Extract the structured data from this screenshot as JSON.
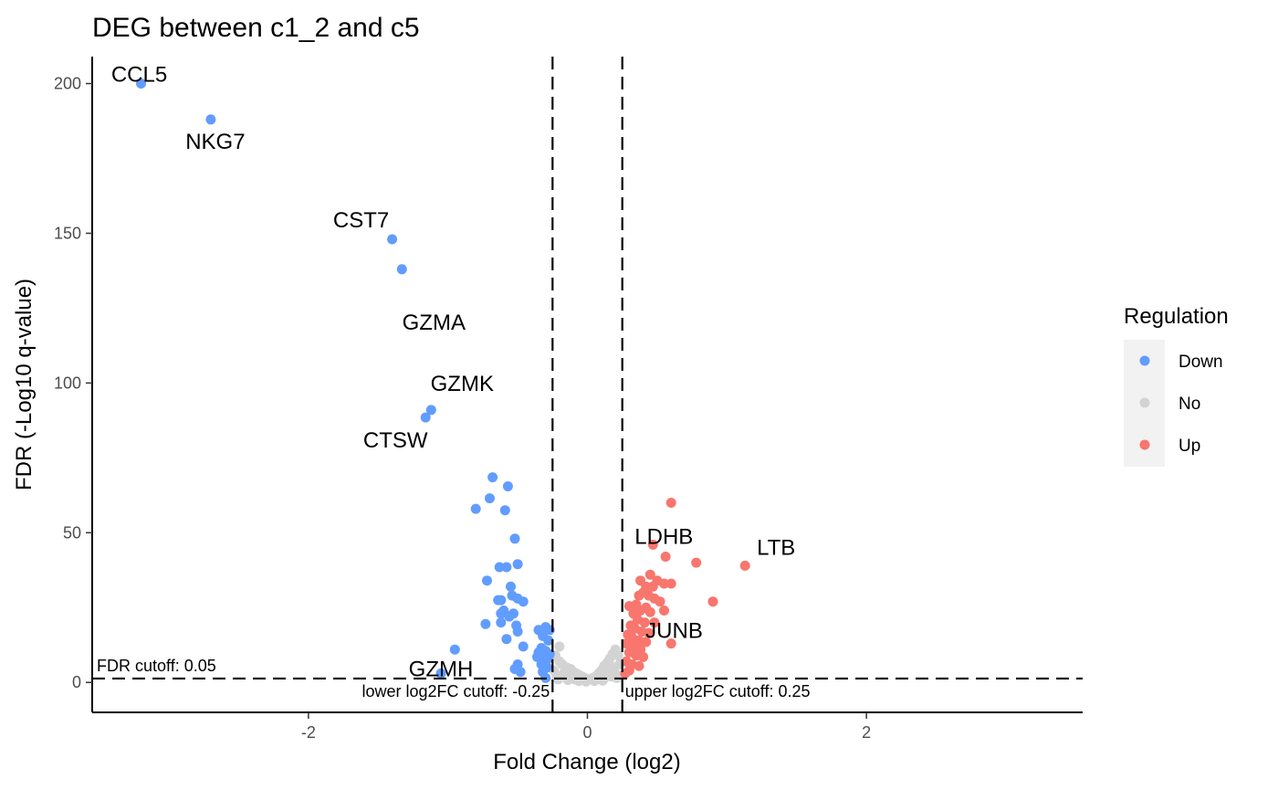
{
  "chart_data": {
    "type": "scatter",
    "title": "DEG between c1_2 and c5",
    "xlabel": "Fold Change (log2)",
    "ylabel": "FDR (-Log10 q-value)",
    "xlim": [
      -3.55,
      3.55
    ],
    "ylim": [
      -10,
      209
    ],
    "x_ticks": [
      -2,
      0,
      2
    ],
    "x_tick_labels": [
      "-2",
      "0",
      "2"
    ],
    "y_ticks": [
      0,
      50,
      100,
      150,
      200
    ],
    "y_tick_labels": [
      "0",
      "50",
      "100",
      "150",
      "200"
    ],
    "grid": false,
    "legend": {
      "title": "Regulation",
      "position": "right",
      "entries": [
        {
          "label": "Down",
          "color": "#619CFF"
        },
        {
          "label": "No",
          "color": "#D3D3D3"
        },
        {
          "label": "Up",
          "color": "#F8766D"
        }
      ]
    },
    "cutoffs": {
      "fdr": 1.3,
      "lower_log2fc": -0.25,
      "upper_log2fc": 0.25,
      "fdr_label": "FDR cutoff: 0.05",
      "lower_label": "lower log2FC cutoff: -0.25",
      "upper_label": "upper log2FC cutoff: 0.25"
    },
    "series": [
      {
        "name": "Down",
        "color": "#619CFF",
        "points": [
          [
            -3.2,
            200
          ],
          [
            -2.7,
            188
          ],
          [
            -1.4,
            148
          ],
          [
            -1.33,
            138
          ],
          [
            -1.12,
            91
          ],
          [
            -1.16,
            88.5
          ],
          [
            -0.68,
            68.5
          ],
          [
            -0.57,
            65.5
          ],
          [
            -0.7,
            61.5
          ],
          [
            -0.59,
            57.5
          ],
          [
            -0.8,
            58
          ],
          [
            -0.52,
            48
          ],
          [
            -0.5,
            39.5
          ],
          [
            -0.63,
            38.5
          ],
          [
            -0.58,
            38.5
          ],
          [
            -0.72,
            34
          ],
          [
            -0.55,
            32
          ],
          [
            -0.64,
            27.5
          ],
          [
            -0.62,
            27.5
          ],
          [
            -0.54,
            29
          ],
          [
            -0.5,
            28
          ],
          [
            -0.46,
            27
          ],
          [
            -0.6,
            24
          ],
          [
            -0.62,
            23
          ],
          [
            -0.56,
            22
          ],
          [
            -0.53,
            23
          ],
          [
            -0.62,
            20
          ],
          [
            -0.51,
            19
          ],
          [
            -0.5,
            17
          ],
          [
            -0.58,
            14.5
          ],
          [
            -0.73,
            19.5
          ],
          [
            -0.3,
            18.5
          ],
          [
            -0.35,
            17.5
          ],
          [
            -0.27,
            17.5
          ],
          [
            -0.32,
            15.5
          ],
          [
            -0.28,
            14
          ],
          [
            -0.33,
            11.5
          ],
          [
            -0.3,
            10.5
          ],
          [
            -0.35,
            10
          ],
          [
            -0.27,
            9.5
          ],
          [
            -0.31,
            9
          ],
          [
            -0.36,
            8.5
          ],
          [
            -0.28,
            8
          ],
          [
            -0.3,
            7
          ],
          [
            -0.33,
            6
          ],
          [
            -0.29,
            5
          ],
          [
            -0.46,
            12
          ],
          [
            -0.95,
            11
          ],
          [
            -0.5,
            6
          ],
          [
            -0.52,
            4.5
          ],
          [
            -0.48,
            3.5
          ],
          [
            -0.32,
            3.5
          ],
          [
            -0.3,
            1.5
          ],
          [
            -1.05,
            3
          ]
        ]
      },
      {
        "name": "No",
        "color": "#D3D3D3",
        "points": [
          [
            -0.2,
            12
          ],
          [
            -0.23,
            9
          ],
          [
            -0.2,
            7
          ],
          [
            -0.18,
            6
          ],
          [
            -0.15,
            5
          ],
          [
            -0.12,
            4.5
          ],
          [
            -0.1,
            3.5
          ],
          [
            -0.08,
            3
          ],
          [
            -0.06,
            2.5
          ],
          [
            -0.04,
            2
          ],
          [
            -0.02,
            1.5
          ],
          [
            0.0,
            1
          ],
          [
            0.02,
            1
          ],
          [
            0.04,
            1.5
          ],
          [
            0.06,
            2
          ],
          [
            0.08,
            3
          ],
          [
            0.1,
            4
          ],
          [
            0.12,
            5.5
          ],
          [
            0.14,
            6.5
          ],
          [
            0.16,
            8
          ],
          [
            0.18,
            9.5
          ],
          [
            0.2,
            11
          ],
          [
            0.22,
            9
          ],
          [
            0.19,
            5
          ],
          [
            0.15,
            3
          ],
          [
            -0.17,
            3
          ],
          [
            -0.22,
            2
          ],
          [
            -0.24,
            4
          ],
          [
            -0.21,
            1
          ],
          [
            -0.13,
            1.5
          ],
          [
            -0.09,
            1
          ],
          [
            0.09,
            1
          ],
          [
            0.13,
            2
          ],
          [
            0.2,
            3
          ],
          [
            0.23,
            6
          ],
          [
            -0.06,
            0.5
          ],
          [
            0.05,
            0.5
          ],
          [
            -0.01,
            0.3
          ],
          [
            0.11,
            0.6
          ],
          [
            -0.14,
            0.8
          ],
          [
            0.21,
            1.5
          ],
          [
            0.17,
            2
          ]
        ]
      },
      {
        "name": "Up",
        "color": "#F8766D",
        "points": [
          [
            0.6,
            60
          ],
          [
            0.47,
            46
          ],
          [
            0.56,
            42
          ],
          [
            0.78,
            40
          ],
          [
            1.13,
            39
          ],
          [
            0.9,
            27
          ],
          [
            0.6,
            13
          ],
          [
            0.45,
            36
          ],
          [
            0.5,
            34
          ],
          [
            0.38,
            34
          ],
          [
            0.42,
            32
          ],
          [
            0.47,
            32
          ],
          [
            0.55,
            33
          ],
          [
            0.6,
            33
          ],
          [
            0.4,
            30
          ],
          [
            0.44,
            29
          ],
          [
            0.37,
            29
          ],
          [
            0.48,
            28
          ],
          [
            0.52,
            27
          ],
          [
            0.35,
            26
          ],
          [
            0.3,
            25.5
          ],
          [
            0.42,
            25
          ],
          [
            0.38,
            24
          ],
          [
            0.45,
            23.5
          ],
          [
            0.55,
            24
          ],
          [
            0.33,
            23
          ],
          [
            0.36,
            21
          ],
          [
            0.41,
            20
          ],
          [
            0.48,
            20
          ],
          [
            0.31,
            19
          ],
          [
            0.34,
            18
          ],
          [
            0.39,
            17
          ],
          [
            0.44,
            16.5
          ],
          [
            0.29,
            16
          ],
          [
            0.32,
            15
          ],
          [
            0.37,
            14
          ],
          [
            0.42,
            13.5
          ],
          [
            0.28,
            13
          ],
          [
            0.33,
            12
          ],
          [
            0.38,
            11
          ],
          [
            0.3,
            10
          ],
          [
            0.35,
            9
          ],
          [
            0.4,
            8.5
          ],
          [
            0.28,
            7
          ],
          [
            0.32,
            6
          ],
          [
            0.37,
            5.5
          ],
          [
            0.3,
            4
          ],
          [
            0.27,
            3
          ]
        ]
      }
    ],
    "annotations": [
      {
        "text": "CCL5",
        "x": -3.2,
        "y": 200
      },
      {
        "text": "NKG7",
        "x": -2.7,
        "y": 188
      },
      {
        "text": "CST7",
        "x": -1.4,
        "y": 148
      },
      {
        "text": "GZMA",
        "x": -1.33,
        "y": 138
      },
      {
        "text": "GZMK",
        "x": -1.12,
        "y": 91
      },
      {
        "text": "CTSW",
        "x": -1.16,
        "y": 88.5
      },
      {
        "text": "GZMH",
        "x": -1.05,
        "y": 3
      },
      {
        "text": "LDHB",
        "x": 0.47,
        "y": 46
      },
      {
        "text": "LTB",
        "x": 1.13,
        "y": 39
      },
      {
        "text": "JUNB",
        "x": 0.55,
        "y": 24
      }
    ]
  }
}
